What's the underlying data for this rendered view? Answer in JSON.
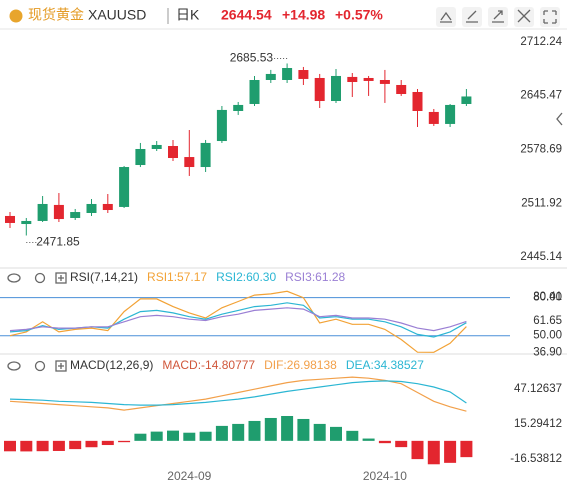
{
  "header": {
    "name": "现货黄金",
    "symbol": "XAUUSD",
    "period": "日K",
    "change": "+14.98",
    "change_pct": "+0.57%"
  },
  "chart_data": [
    {
      "type": "candlestick",
      "categories": [
        null,
        null,
        null,
        null,
        null,
        null,
        null,
        null,
        null,
        null,
        null,
        "2024-09",
        null,
        null,
        null,
        null,
        null,
        null,
        null,
        null,
        null,
        null,
        null,
        "2024-10",
        null,
        null,
        null,
        null,
        null
      ],
      "open": [
        2496.1,
        2486.1,
        2489.9,
        2509.8,
        2493.6,
        2499.8,
        2511.0,
        2507.3,
        2559.4,
        2579.3,
        2583.0,
        2569.3,
        2556.9,
        2589.2,
        2626.5,
        2635.2,
        2665.0,
        2665.0,
        2677.4,
        2667.5,
        2638.9,
        2668.8,
        2667.5,
        2665.0,
        2658.8,
        2650.1,
        2625.3,
        2610.4,
        2635.2
      ],
      "high": [
        2501.0,
        2493.6,
        2520.9,
        2524.6,
        2504.8,
        2517.2,
        2523.4,
        2558.2,
        2586.8,
        2589.2,
        2590.5,
        2602.9,
        2590.5,
        2632.7,
        2637.7,
        2670.0,
        2677.5,
        2685.53,
        2681.2,
        2672.5,
        2678.7,
        2673.7,
        2670.0,
        2677.5,
        2665.0,
        2653.8,
        2629.0,
        2635.2,
        2653.8
      ],
      "low": [
        2481.2,
        2471.85,
        2488.6,
        2488.6,
        2491.1,
        2496.1,
        2499.8,
        2506.0,
        2556.9,
        2576.8,
        2564.4,
        2545.8,
        2550.7,
        2586.8,
        2621.6,
        2632.7,
        2661.3,
        2661.3,
        2658.8,
        2630.2,
        2636.5,
        2643.9,
        2645.2,
        2636.5,
        2645.2,
        2606.6,
        2607.9,
        2606.6,
        2632.7
      ],
      "close": [
        2487.4,
        2489.9,
        2511.0,
        2492.3,
        2501.0,
        2511.0,
        2503.5,
        2556.9,
        2579.3,
        2584.3,
        2568.1,
        2556.9,
        2586.8,
        2627.8,
        2634.0,
        2665.0,
        2672.5,
        2679.9,
        2666.3,
        2638.9,
        2670.0,
        2662.5,
        2663.8,
        2660.1,
        2647.6,
        2626.5,
        2610.4,
        2634.0,
        2644.54
      ],
      "up_color": "#1f9d6e",
      "down_color": "#e3262f",
      "ylim": [
        2435.2,
        2727.1
      ],
      "yticks": [
        2712.24,
        2645.47,
        2578.69,
        2511.92,
        2445.14
      ]
    },
    {
      "type": "line",
      "title": "RSI(7,14,21)",
      "series": [
        {
          "name": "RSI1:57.17",
          "color": "#f2a236",
          "values": [
            50,
            53,
            61,
            53,
            55,
            56,
            54,
            69,
            79,
            79,
            73,
            68,
            64,
            72,
            77,
            82,
            83,
            85,
            80,
            60,
            63,
            59,
            59,
            55,
            47,
            37,
            36.9,
            44,
            57.17
          ]
        },
        {
          "name": "RSI2:60.30",
          "color": "#2bb6d3",
          "values": [
            53,
            54,
            58,
            55,
            56,
            57,
            56,
            63,
            69,
            70,
            68,
            65,
            63,
            67,
            70,
            73,
            74,
            76,
            74,
            64,
            65,
            63,
            63,
            61,
            57,
            51,
            49,
            53,
            60.3
          ]
        },
        {
          "name": "RSI3:61.28",
          "color": "#9a7fd4",
          "values": [
            54,
            55,
            57,
            56,
            56,
            57,
            57,
            61,
            65,
            66,
            65,
            63,
            62,
            65,
            67,
            70,
            71,
            72,
            71,
            65,
            66,
            64,
            64,
            63,
            60,
            56,
            54,
            57,
            61.28
          ]
        }
      ],
      "ylim": [
        34,
        90
      ],
      "yticks": [
        {
          "value": 80,
          "label": "80.00"
        },
        80.41,
        61.65,
        {
          "value": 50,
          "label": "50.00"
        },
        {
          "value": 36.9,
          "label": "36.90"
        }
      ],
      "reference_lines": [
        80,
        50
      ],
      "reference_color": "#4a8fd8"
    },
    {
      "type": "macd",
      "title": "MACD(12,26,9)",
      "series": [
        {
          "name": "MACD:-14.80777",
          "up_color": "#1f9d6e",
          "down_color": "#e3262f",
          "values": [
            -9.5,
            -9.6,
            -9.4,
            -9.2,
            -7.5,
            -5.8,
            -3.8,
            -1.2,
            6.5,
            8.4,
            9.3,
            7.4,
            8.3,
            13.6,
            15.4,
            18.1,
            20.8,
            22.6,
            19.9,
            15.4,
            12.7,
            9.1,
            2.1,
            -2.1,
            -5.7,
            -16.6,
            -21.3,
            -20.0,
            -14.80777
          ]
        },
        {
          "name": "DIF:26.98138",
          "color": "#f2a04a",
          "values": [
            36,
            35,
            34,
            33,
            32,
            31,
            30,
            28,
            30,
            32,
            34,
            36,
            38,
            41,
            44,
            47,
            50,
            53,
            55,
            56,
            57,
            58,
            57,
            55,
            52,
            44,
            36,
            31,
            26.98138
          ]
        },
        {
          "name": "DEA:34.38527",
          "color": "#2bb6d3",
          "values": [
            38,
            37.5,
            37,
            36,
            35.5,
            35,
            34,
            33,
            32.5,
            32.5,
            33,
            34,
            35,
            36.5,
            38,
            40,
            42.5,
            45,
            47,
            49,
            51,
            53,
            54,
            54.5,
            54,
            52,
            49,
            44.5,
            34.38527
          ]
        }
      ],
      "ylim": [
        -26.5,
        62.6
      ],
      "yticks": [
        47.12637,
        15.29412,
        -16.53812
      ]
    }
  ]
}
